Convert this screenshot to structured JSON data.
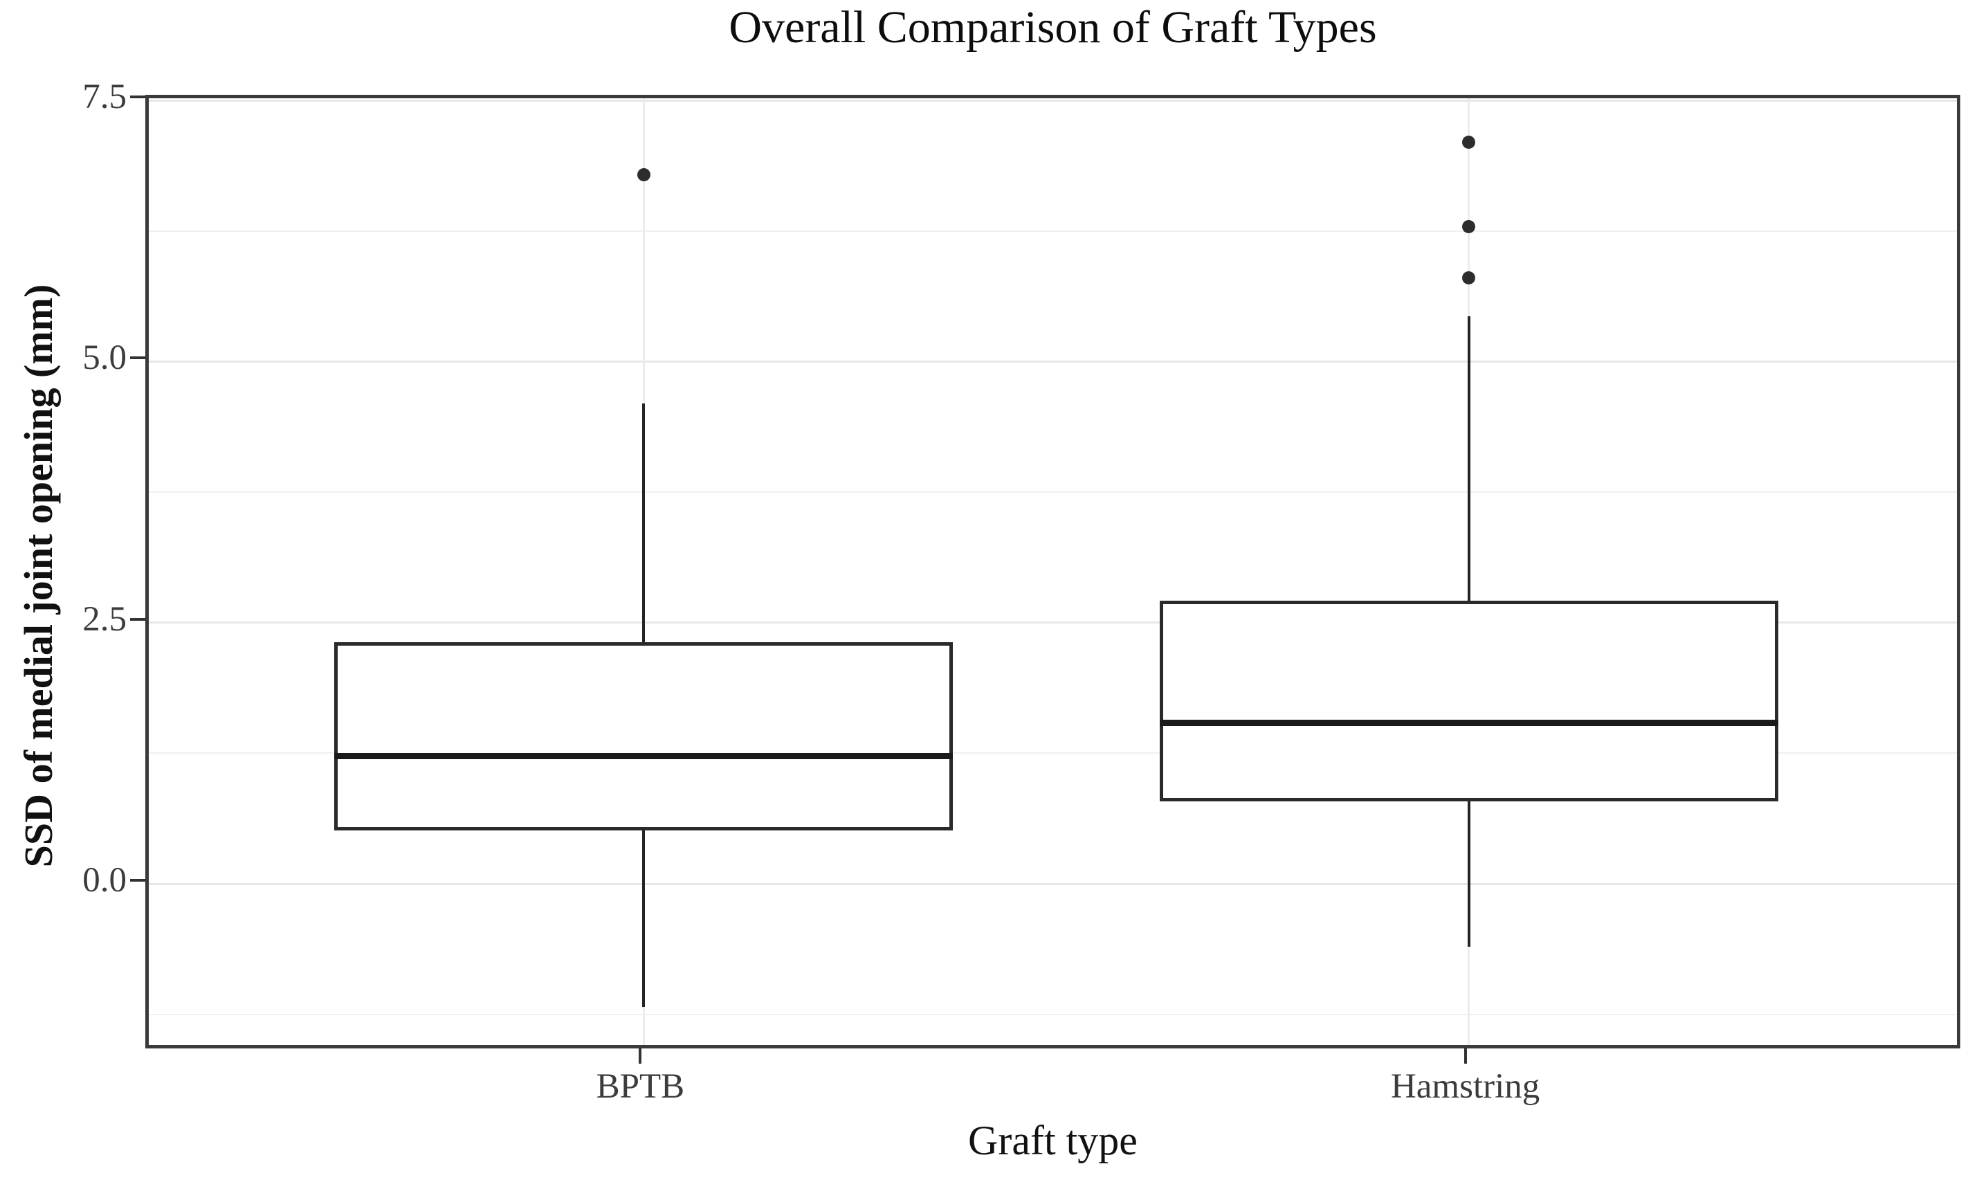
{
  "title": "Overall Comparison of Graft Types",
  "y_axis": {
    "label": "SSD of medial joint opening (mm)",
    "tick_labels": [
      "7.5",
      "5.0",
      "2.5",
      "0.0"
    ],
    "tick_values": [
      7.5,
      5.0,
      2.5,
      0.0
    ]
  },
  "x_axis": {
    "label": "Graft type",
    "categories": [
      "BPTB",
      "Hamstring"
    ]
  },
  "chart_data": {
    "type": "boxplot",
    "title": "Overall Comparison of Graft Types",
    "xlabel": "Graft type",
    "ylabel": "SSD of medial joint opening (mm)",
    "categories": [
      "BPTB",
      "Hamstring"
    ],
    "ylim": [
      -1.61,
      7.52
    ],
    "y_major_ticks": [
      0.0,
      2.5,
      5.0,
      7.5
    ],
    "y_minor_gridlines": [
      -1.25,
      1.25,
      3.75,
      6.25
    ],
    "grid": true,
    "legend": false,
    "series": [
      {
        "name": "BPTB",
        "whisker_low": -1.18,
        "q1": 0.51,
        "median": 1.22,
        "q3": 2.31,
        "whisker_high": 4.6,
        "outliers": [
          6.79
        ]
      },
      {
        "name": "Hamstring",
        "whisker_low": -0.6,
        "q1": 0.79,
        "median": 1.54,
        "q3": 2.71,
        "whisker_high": 5.43,
        "outliers": [
          5.8,
          6.29,
          7.1
        ]
      }
    ],
    "colors": {
      "box_fill": "#ffffff",
      "line": "#242424",
      "grid_major": "#e7e7e7",
      "grid_minor": "#f0f0f0",
      "background": "#ffffff",
      "panel_border": "#3a3a3a"
    }
  }
}
